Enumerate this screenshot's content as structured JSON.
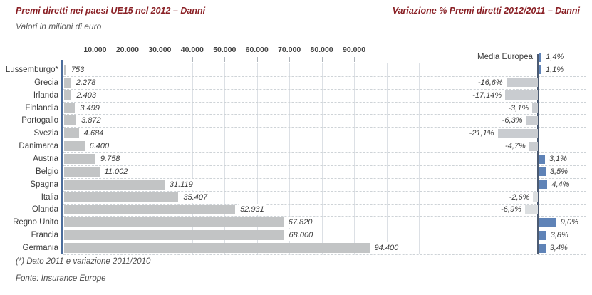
{
  "footnotes": [
    "(*) Dato 2011 e variazione 2011/2010",
    "Fonte: Insurance Europe"
  ],
  "colors": {
    "title": "#8a2126",
    "text": "#3c3c3c",
    "muted_text": "#5a5a5a",
    "bar_gray": "#c2c4c5",
    "bar_blue": "#5f83b7",
    "bar_negative": "#c9ccd0",
    "bar_negative_light": "#dcdfe1",
    "axis_left": "#4c6d9c",
    "axis_right": "#4c5b72",
    "gridline": "#dce0e5",
    "tick_mark": "#aeb4ba",
    "row_dash": "#ced3d7"
  },
  "chart_data": [
    {
      "type": "bar",
      "orientation": "horizontal",
      "title": "Premi diretti nei paesi UE15 nel 2012 – Danni",
      "subtitle": "Valori in milioni di euro",
      "categories": [
        "Lussemburgo*",
        "Grecia",
        "Irlanda",
        "Finlandia",
        "Portogallo",
        "Svezia",
        "Danimarca",
        "Austria",
        "Belgio",
        "Spagna",
        "Italia",
        "Olanda",
        "Regno Unito",
        "Francia",
        "Germania"
      ],
      "values": [
        753,
        2278,
        2403,
        3499,
        3872,
        4684,
        6400,
        9758,
        11002,
        31119,
        35407,
        52931,
        67820,
        68000,
        94400
      ],
      "value_labels": [
        "753",
        "2.278",
        "2.403",
        "3.499",
        "3.872",
        "4.684",
        "6.400",
        "9.758",
        "11.002",
        "31.119",
        "35.407",
        "52.931",
        "67.820",
        "68.000",
        "94.400"
      ],
      "x_tick_labels": [
        "10.000",
        "20.000",
        "30.000",
        "40.000",
        "50.000",
        "60.000",
        "70.000",
        "80.000",
        "90.000"
      ],
      "x_tick_values": [
        10000,
        20000,
        30000,
        40000,
        50000,
        60000,
        70000,
        80000,
        90000
      ],
      "xlim": [
        0,
        121000
      ],
      "grid": "vertical solid gridlines, dashed row leader lines"
    },
    {
      "type": "bar",
      "orientation": "horizontal",
      "title": "Variazione % Premi diretti 2012/2011 – Danni",
      "reference_row": {
        "label": "Media Europea",
        "value": 1.4,
        "value_label": "1,4%"
      },
      "categories": [
        "Lussemburgo*",
        "Grecia",
        "Irlanda",
        "Finlandia",
        "Portogallo",
        "Svezia",
        "Danimarca",
        "Austria",
        "Belgio",
        "Spagna",
        "Italia",
        "Olanda",
        "Regno Unito",
        "Francia",
        "Germania"
      ],
      "values": [
        1.1,
        -16.6,
        -17.14,
        -3.1,
        -6.3,
        -21.1,
        -4.7,
        3.1,
        3.5,
        4.4,
        -2.6,
        -6.9,
        9.0,
        3.8,
        3.4
      ],
      "value_labels": [
        "1,1%",
        "-16,6%",
        "-17,14%",
        "-3,1%",
        "-6,3%",
        "-21,1%",
        "-4,7%",
        "3,1%",
        "3,5%",
        "4,4%",
        "-2,6%",
        "-6,9%",
        "9,0%",
        "3,8%",
        "3,4%"
      ],
      "muted_value_rows": [
        10,
        11
      ],
      "xlim": [
        -25,
        12
      ],
      "legend": "none",
      "note": "bars left of zero axis are negative (gray), right are positive (blue)"
    }
  ]
}
